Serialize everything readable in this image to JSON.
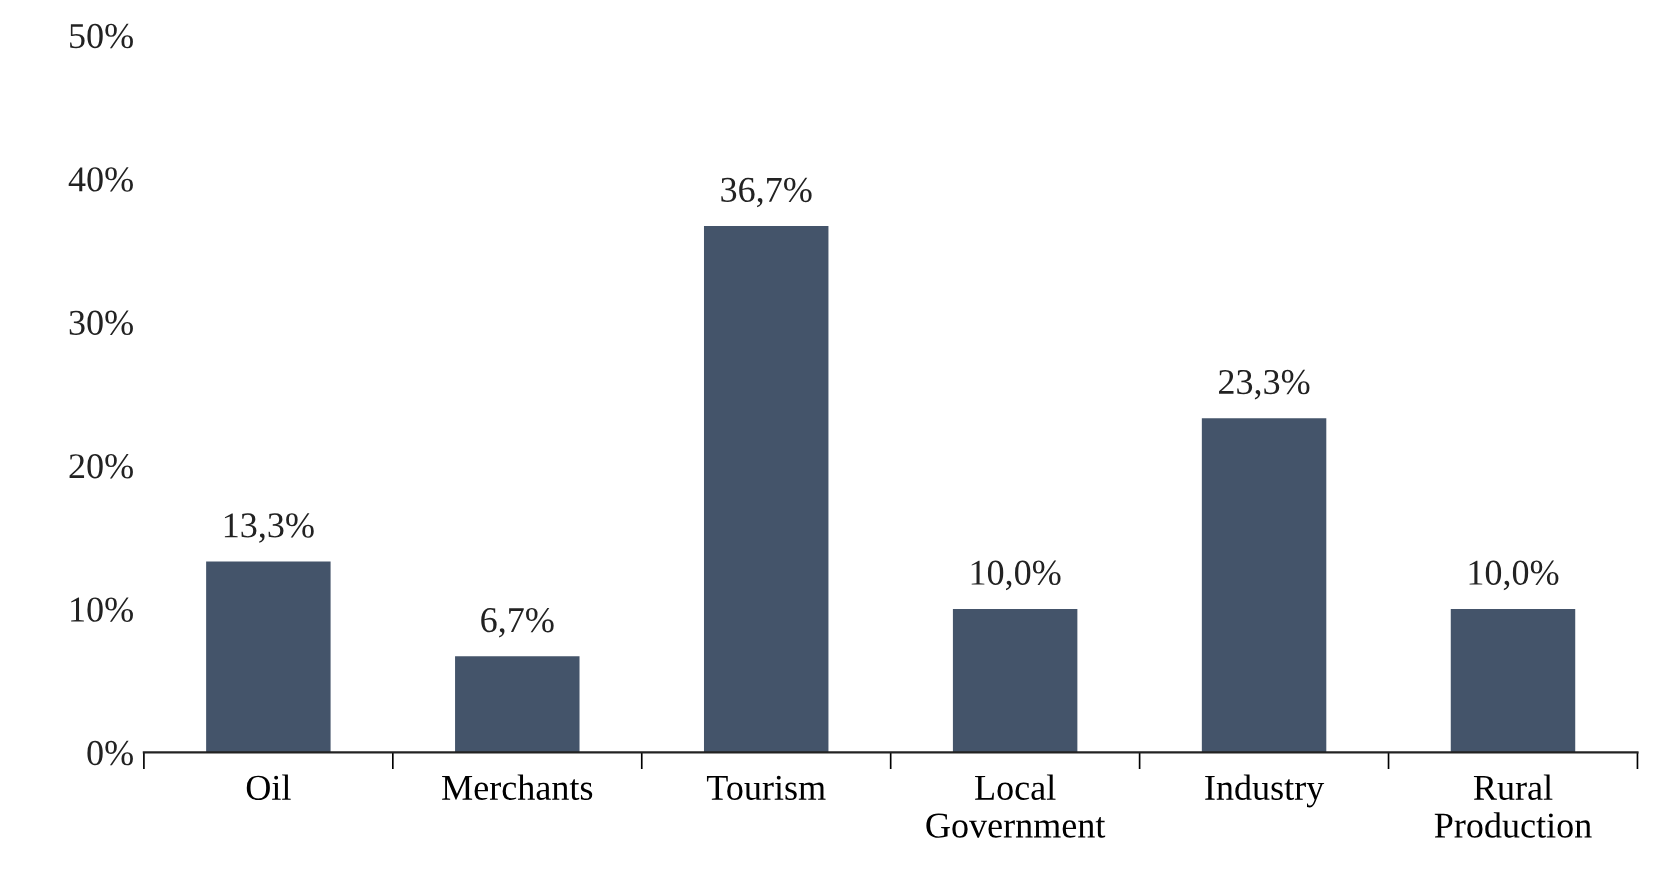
{
  "chart_data": {
    "type": "bar",
    "categories": [
      "Oil",
      "Merchants",
      "Tourism",
      "Local\nGovernment",
      "Industry",
      "Rural\nProduction"
    ],
    "values": [
      13.3,
      6.7,
      36.7,
      10.0,
      23.3,
      10.0
    ],
    "value_labels": [
      "13,3%",
      "6,7%",
      "36,7%",
      "10,0%",
      "23,3%",
      "10,0%"
    ],
    "color": "#44546a",
    "ylim": [
      0,
      50
    ],
    "yticks": [
      {
        "value": 0,
        "label": "0%"
      },
      {
        "value": 10,
        "label": "10%"
      },
      {
        "value": 20,
        "label": "20%"
      },
      {
        "value": 30,
        "label": "30%"
      },
      {
        "value": 40,
        "label": "40%"
      },
      {
        "value": 50,
        "label": "50%"
      }
    ],
    "grid": false
  }
}
